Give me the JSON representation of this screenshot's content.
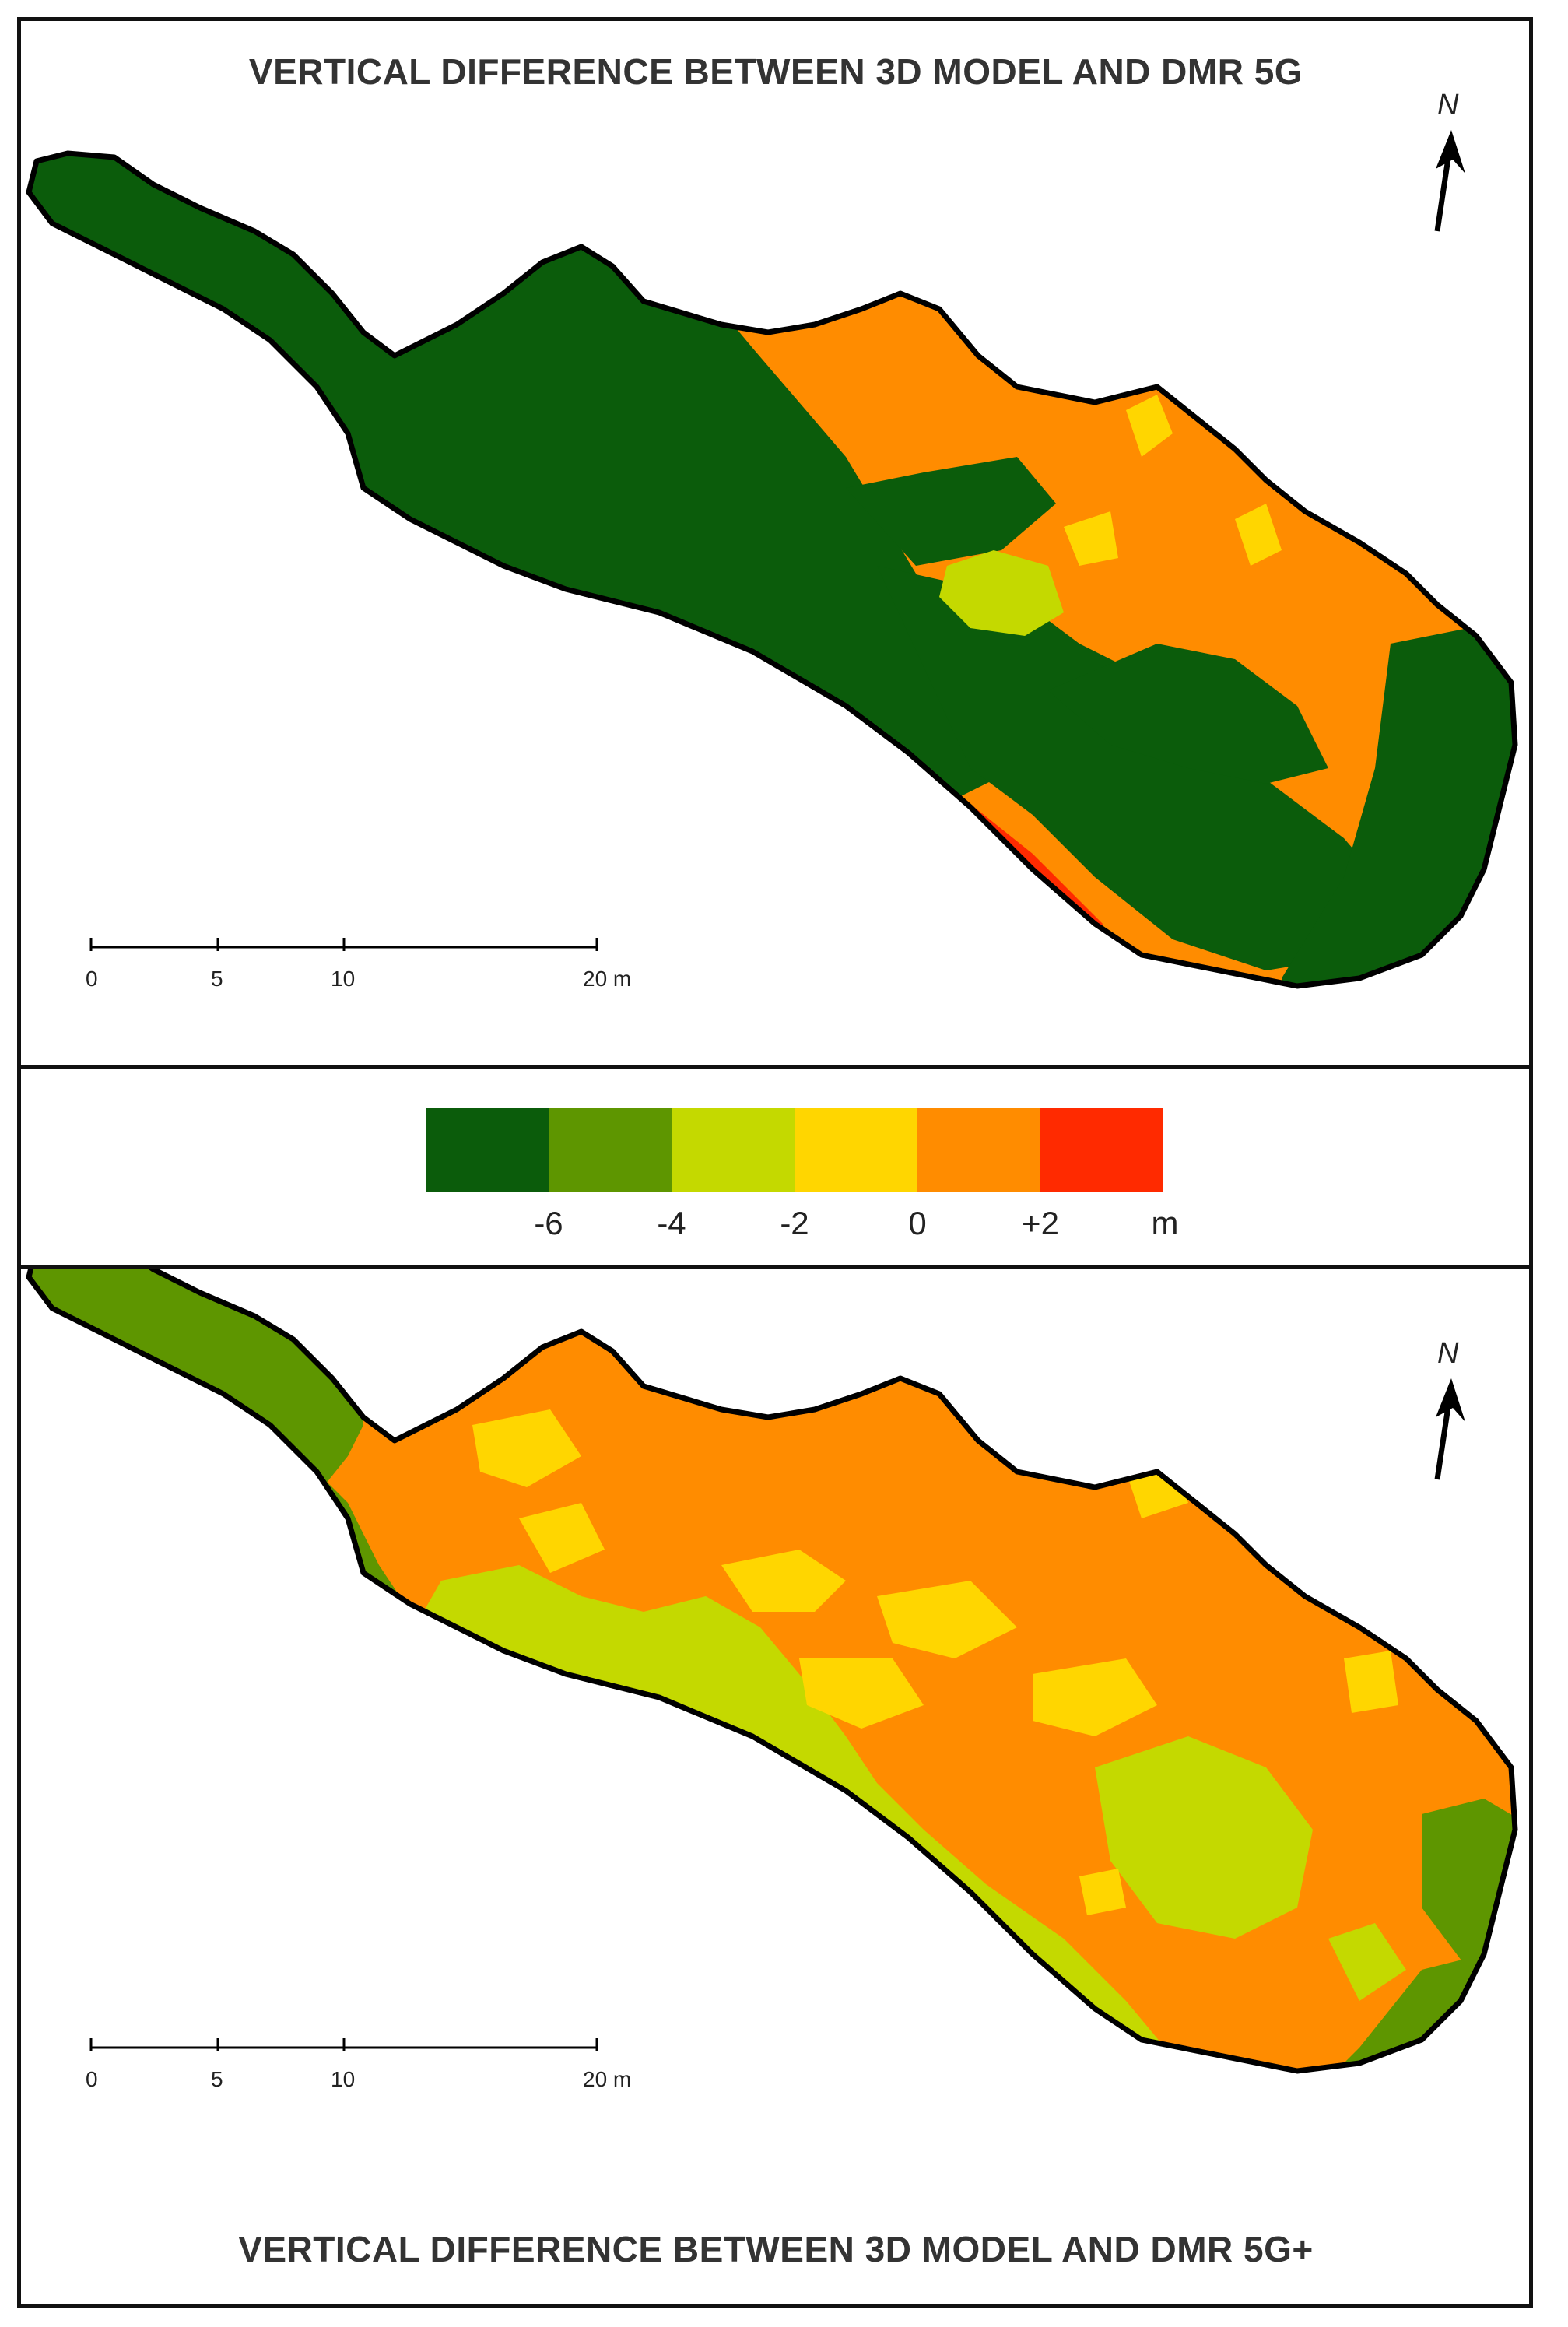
{
  "top_panel": {
    "title": "VERTICAL DIFFERENCE BETWEEN 3D MODEL AND DMR 5G",
    "north_label": "N",
    "scale_ticks": [
      "0",
      "5",
      "10",
      "20 m"
    ]
  },
  "bottom_panel": {
    "title": "VERTICAL DIFFERENCE BETWEEN 3D MODEL AND DMR 5G+",
    "north_label": "N",
    "scale_ticks": [
      "0",
      "5",
      "10",
      "20 m"
    ]
  },
  "legend": {
    "colors": [
      "#0b5c0b",
      "#5e9600",
      "#c4d900",
      "#ffd600",
      "#ff8c00",
      "#ff2a00"
    ],
    "ticks": [
      "-6",
      "-4",
      "-2",
      "0",
      "+2"
    ],
    "unit": "m"
  },
  "colors": {
    "dark_green": "#0b5c0b",
    "green": "#5e9600",
    "yellow_green": "#c4d900",
    "yellow": "#ffd600",
    "orange": "#ff8c00",
    "red": "#ff2a00",
    "outline": "#000000"
  }
}
